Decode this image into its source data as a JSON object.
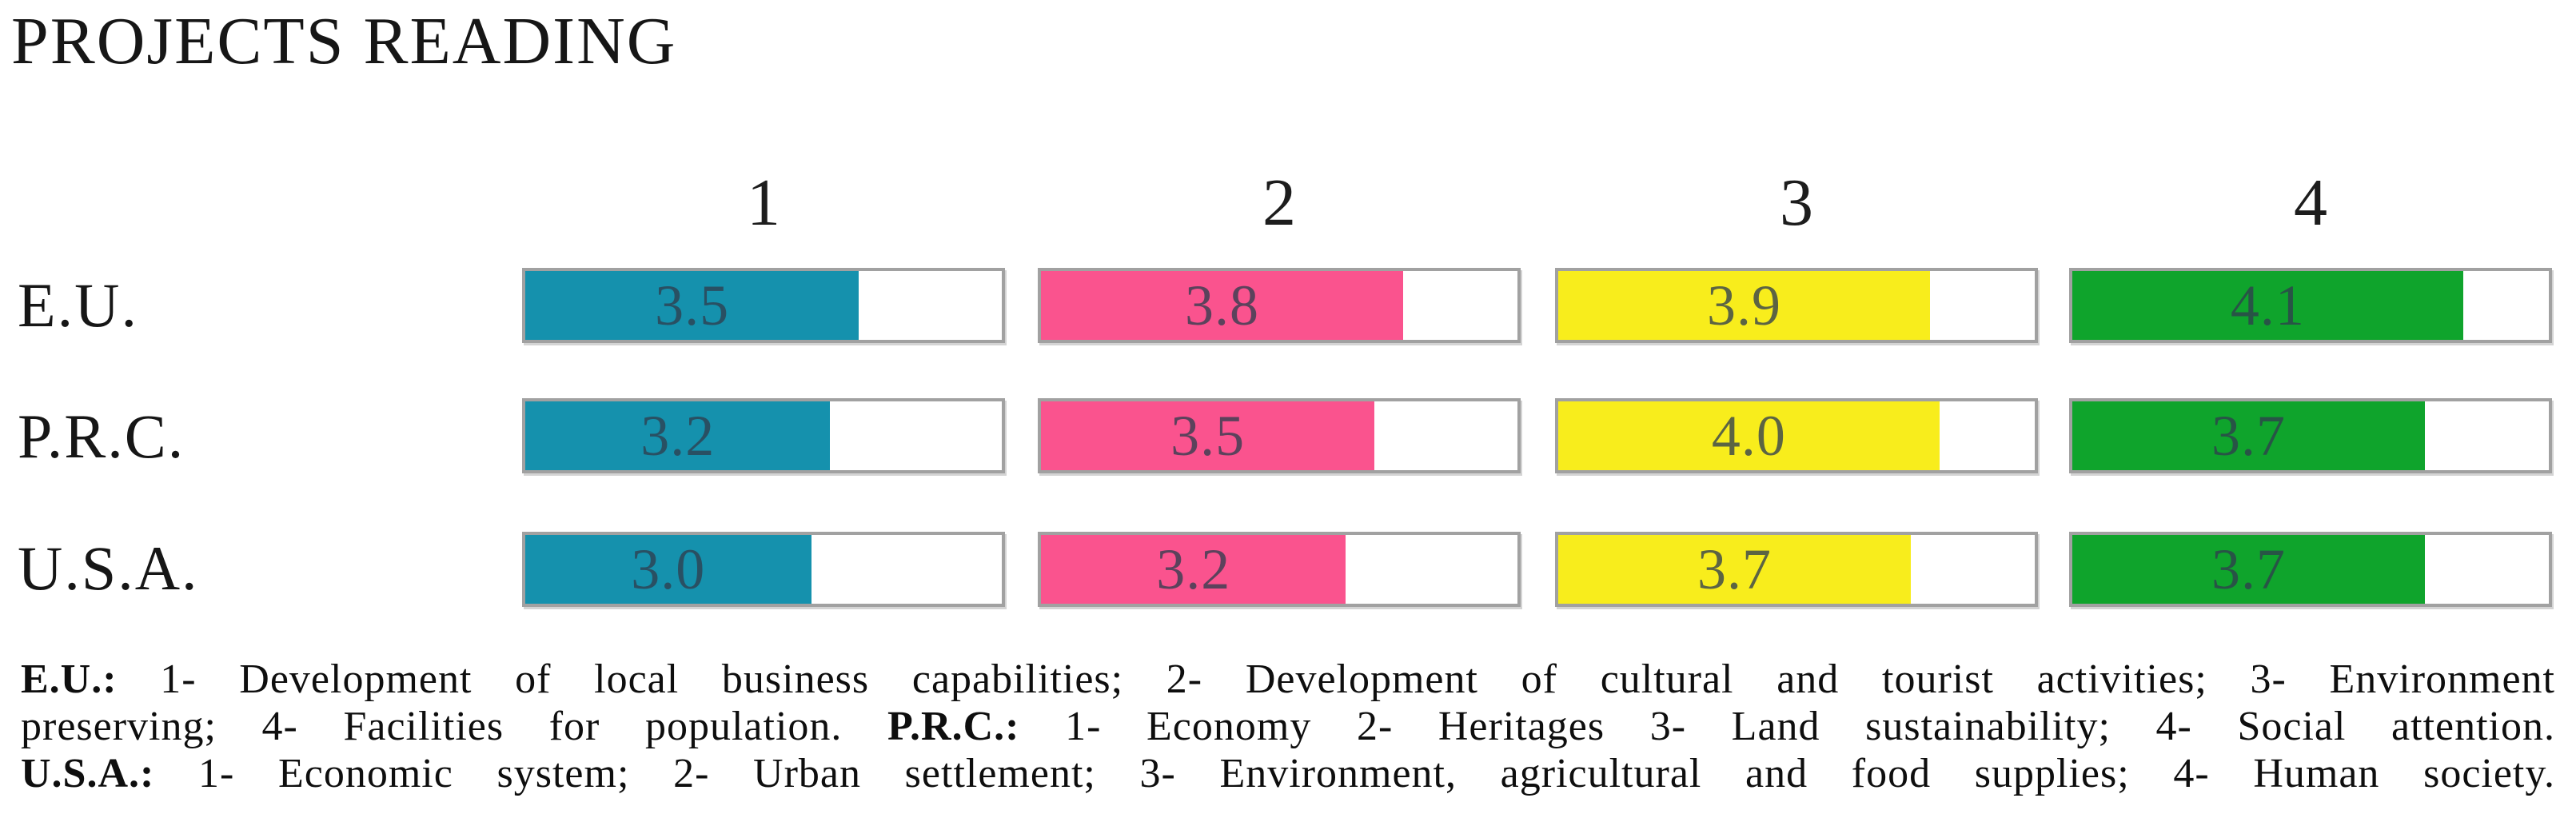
{
  "title": "PROJECTS READING",
  "chart_data": {
    "type": "bar",
    "title": "PROJECTS READING",
    "orientation": "horizontal",
    "categories": [
      "1",
      "2",
      "3",
      "4"
    ],
    "rows": [
      "E.U.",
      "P.R.C.",
      "U.S.A."
    ],
    "axis": {
      "min": 0,
      "max": 5
    },
    "grid": "off",
    "legend_position": "none",
    "series": [
      {
        "name": "E.U.",
        "values": [
          3.5,
          3.8,
          3.9,
          4.1
        ],
        "labels": [
          "3.5",
          "3.8",
          "3.9",
          "4.1"
        ]
      },
      {
        "name": "P.R.C.",
        "values": [
          3.2,
          3.5,
          4.0,
          3.7
        ],
        "labels": [
          "3.2",
          "3.5",
          "4.0",
          "3.7"
        ]
      },
      {
        "name": "U.S.A.",
        "values": [
          3.0,
          3.2,
          3.7,
          3.7
        ],
        "labels": [
          "3.0",
          "3.2",
          "3.7",
          "3.7"
        ]
      }
    ],
    "column_colors": [
      "#1591AD",
      "#FA538E",
      "#F8ED1C",
      "#0FA42C"
    ],
    "track_border_color": "#A1A1A1",
    "value_label_color": "#2F3E4E"
  },
  "caption": {
    "lines": [
      {
        "segments": [
          {
            "bold": true,
            "text": "E.U.:"
          },
          {
            "bold": false,
            "text": " 1- Development of local business capabilities; 2- Development of cultural and tourist activities; 3- Environment"
          }
        ]
      },
      {
        "segments": [
          {
            "bold": false,
            "text": "preserving; 4- Facilities for population. "
          },
          {
            "bold": true,
            "text": "P.R.C.:"
          },
          {
            "bold": false,
            "text": " 1- Economy 2- Heritages 3- Land sustainability; 4- Social attention."
          }
        ]
      },
      {
        "segments": [
          {
            "bold": true,
            "text": "U.S.A.:"
          },
          {
            "bold": false,
            "text": " 1- Economic system; 2- Urban settlement; 3- Environment, agricultural and food supplies;  4- Human society."
          }
        ]
      }
    ]
  }
}
